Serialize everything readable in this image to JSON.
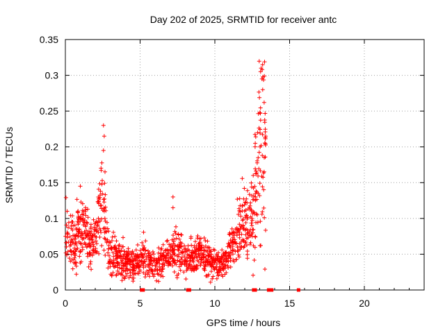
{
  "chart_data": {
    "type": "scatter",
    "title": "Day 202 of 2025, SRMTID for receiver antc",
    "xlabel": "GPS time / hours",
    "ylabel": "SRMTID / TECUs",
    "xlim": [
      0,
      24
    ],
    "ylim": [
      0,
      0.35
    ],
    "xticks": [
      0,
      5,
      10,
      15,
      20
    ],
    "xtick_labels": [
      "0",
      "5",
      "10",
      "15",
      "20"
    ],
    "yticks": [
      0,
      0.05,
      0.1,
      0.15,
      0.2,
      0.25,
      0.3,
      0.35
    ],
    "ytick_labels": [
      "0",
      "0.05",
      "0.1",
      "0.15",
      "0.2",
      "0.25",
      "0.3",
      "0.35"
    ],
    "grid": true,
    "marker": "+",
    "series_color": "#ff0000",
    "x_axis_zero_markers": [
      5.1,
      5.2,
      8.2,
      8.3,
      12.6,
      12.7,
      13.6,
      13.8,
      15.6
    ],
    "series": [
      {
        "name": "SRMTID",
        "profile_x": [
          0.0,
          0.3,
          0.6,
          0.9,
          1.2,
          1.5,
          1.8,
          2.1,
          2.3,
          2.5,
          2.7,
          2.9,
          3.2,
          3.6,
          4.0,
          4.5,
          5.0,
          5.3,
          5.6,
          6.0,
          6.5,
          7.0,
          7.5,
          8.0,
          8.5,
          9.0,
          9.5,
          10.0,
          10.4,
          10.8,
          11.2,
          11.6,
          12.0,
          12.3,
          12.6,
          12.8,
          13.0,
          13.2,
          13.4
        ],
        "profile_y": [
          0.08,
          0.07,
          0.065,
          0.09,
          0.085,
          0.075,
          0.06,
          0.075,
          0.11,
          0.12,
          0.09,
          0.06,
          0.05,
          0.045,
          0.04,
          0.035,
          0.04,
          0.05,
          0.035,
          0.035,
          0.04,
          0.05,
          0.055,
          0.045,
          0.045,
          0.05,
          0.045,
          0.035,
          0.035,
          0.045,
          0.06,
          0.09,
          0.095,
          0.1,
          0.11,
          0.15,
          0.2,
          0.22,
          0.24
        ],
        "spikes": [
          {
            "x": 2.55,
            "y": 0.23
          },
          {
            "x": 2.6,
            "y": 0.215
          },
          {
            "x": 2.55,
            "y": 0.195
          },
          {
            "x": 2.65,
            "y": 0.165
          },
          {
            "x": 1.0,
            "y": 0.145
          },
          {
            "x": 7.2,
            "y": 0.13
          },
          {
            "x": 7.2,
            "y": 0.115
          },
          {
            "x": 13.1,
            "y": 0.31
          },
          {
            "x": 13.15,
            "y": 0.295
          },
          {
            "x": 13.2,
            "y": 0.28
          },
          {
            "x": 13.3,
            "y": 0.262
          },
          {
            "x": 12.7,
            "y": 0.205
          },
          {
            "x": 12.9,
            "y": 0.185
          },
          {
            "x": 13.4,
            "y": 0.215
          },
          {
            "x": 13.3,
            "y": 0.165
          }
        ]
      }
    ]
  }
}
